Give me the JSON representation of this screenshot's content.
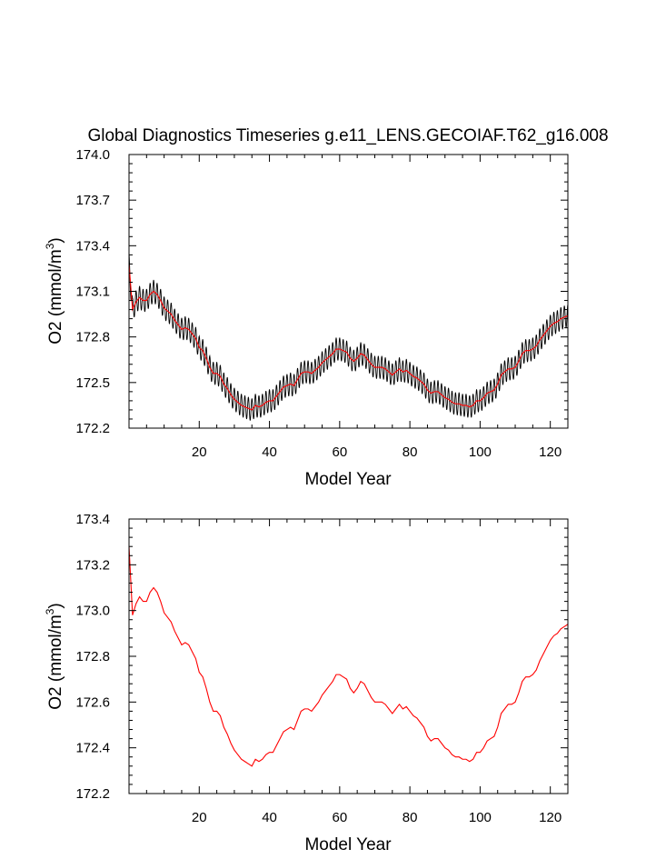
{
  "title": "Global Diagnostics Timeseries g.e11_LENS.GECOIAF.T62_g16.008",
  "chart_data": [
    {
      "type": "line",
      "name": "top",
      "xlabel": "Model Year",
      "ylabel_main": "O2 (mmol/m",
      "ylabel_sup": "3",
      "ylabel_close": ")",
      "xlim": [
        0,
        125
      ],
      "ylim": [
        172.2,
        174.0
      ],
      "xticks": [
        20,
        40,
        60,
        80,
        100,
        120
      ],
      "xtick_labels": [
        "20",
        "40",
        "60",
        "80",
        "100",
        "120"
      ],
      "yticks": [
        172.2,
        172.5,
        172.8,
        173.1,
        173.4,
        173.7,
        174.0
      ],
      "ytick_labels": [
        "172.2",
        "172.5",
        "172.8",
        "173.1",
        "173.4",
        "173.7",
        "174.0"
      ],
      "seasonal_amplitude": 0.075,
      "series": [
        {
          "name": "monthly",
          "color": "#000000",
          "kind": "monthly"
        },
        {
          "name": "annual mean",
          "color": "#ff0000",
          "kind": "annual"
        }
      ]
    },
    {
      "type": "line",
      "name": "bottom",
      "xlabel": "Model Year",
      "ylabel_main": "O2 (mmol/m",
      "ylabel_sup": "3",
      "ylabel_close": ")",
      "xlim": [
        0,
        125
      ],
      "ylim": [
        172.2,
        173.4
      ],
      "xticks": [
        20,
        40,
        60,
        80,
        100,
        120
      ],
      "xtick_labels": [
        "20",
        "40",
        "60",
        "80",
        "100",
        "120"
      ],
      "yticks": [
        172.2,
        172.4,
        172.6,
        172.8,
        173.0,
        173.2,
        173.4
      ],
      "ytick_labels": [
        "172.2",
        "172.4",
        "172.6",
        "172.8",
        "173.0",
        "173.2",
        "173.4"
      ],
      "series": [
        {
          "name": "annual mean",
          "color": "#ff0000",
          "kind": "annual"
        }
      ]
    }
  ],
  "annual_mean": {
    "x": [
      0,
      1,
      2,
      3,
      4,
      5,
      6,
      7,
      8,
      9,
      10,
      11,
      12,
      13,
      14,
      15,
      16,
      17,
      18,
      19,
      20,
      21,
      22,
      23,
      24,
      25,
      26,
      27,
      28,
      29,
      30,
      31,
      32,
      33,
      34,
      35,
      36,
      37,
      38,
      39,
      40,
      41,
      42,
      43,
      44,
      45,
      46,
      47,
      48,
      49,
      50,
      51,
      52,
      53,
      54,
      55,
      56,
      57,
      58,
      59,
      60,
      61,
      62,
      63,
      64,
      65,
      66,
      67,
      68,
      69,
      70,
      71,
      72,
      73,
      74,
      75,
      76,
      77,
      78,
      79,
      80,
      81,
      82,
      83,
      84,
      85,
      86,
      87,
      88,
      89,
      90,
      91,
      92,
      93,
      94,
      95,
      96,
      97,
      98,
      99,
      100,
      101,
      102,
      103,
      104,
      105,
      106,
      107,
      108,
      109,
      110,
      111,
      112,
      113,
      114,
      115,
      116,
      117,
      118,
      119,
      120,
      121,
      122,
      123,
      124,
      125
    ],
    "y": [
      173.28,
      172.98,
      173.03,
      173.06,
      173.04,
      173.04,
      173.08,
      173.1,
      173.08,
      173.04,
      172.99,
      172.97,
      172.95,
      172.91,
      172.88,
      172.85,
      172.86,
      172.85,
      172.82,
      172.79,
      172.73,
      172.71,
      172.66,
      172.6,
      172.56,
      172.56,
      172.54,
      172.49,
      172.46,
      172.42,
      172.39,
      172.37,
      172.35,
      172.34,
      172.33,
      172.32,
      172.35,
      172.34,
      172.35,
      172.37,
      172.38,
      172.38,
      172.41,
      172.44,
      172.47,
      172.48,
      172.49,
      172.48,
      172.52,
      172.56,
      172.57,
      172.57,
      172.56,
      172.58,
      172.6,
      172.63,
      172.65,
      172.67,
      172.69,
      172.72,
      172.72,
      172.71,
      172.7,
      172.66,
      172.64,
      172.66,
      172.69,
      172.68,
      172.65,
      172.62,
      172.6,
      172.6,
      172.6,
      172.59,
      172.57,
      172.55,
      172.57,
      172.59,
      172.57,
      172.58,
      172.56,
      172.54,
      172.53,
      172.51,
      172.49,
      172.45,
      172.43,
      172.44,
      172.44,
      172.42,
      172.4,
      172.39,
      172.37,
      172.36,
      172.36,
      172.35,
      172.35,
      172.34,
      172.35,
      172.38,
      172.38,
      172.4,
      172.43,
      172.44,
      172.45,
      172.49,
      172.55,
      172.57,
      172.59,
      172.59,
      172.6,
      172.64,
      172.69,
      172.71,
      172.71,
      172.72,
      172.74,
      172.78,
      172.81,
      172.84,
      172.87,
      172.89,
      172.9,
      172.92,
      172.93,
      172.94
    ]
  }
}
